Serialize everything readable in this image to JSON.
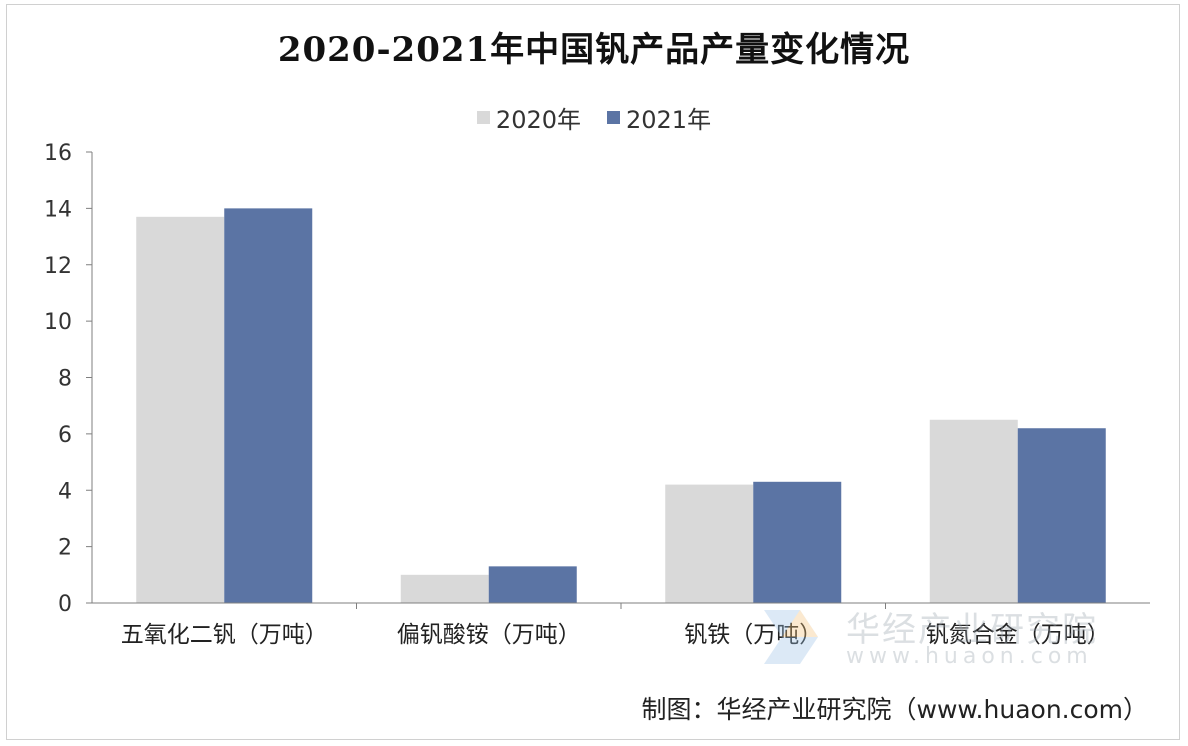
{
  "chart_data": {
    "type": "bar",
    "title": "2020-2021年中国钒产品产量变化情况",
    "categories": [
      "五氧化二钒（万吨）",
      "偏钒酸铵（万吨）",
      "钒铁（万吨）",
      "钒氮合金（万吨）"
    ],
    "series": [
      {
        "name": "2020年",
        "values": [
          13.7,
          1.0,
          4.2,
          6.5
        ],
        "color": "#d9d9d9"
      },
      {
        "name": "2021年",
        "values": [
          14.0,
          1.3,
          4.3,
          6.2
        ],
        "color": "#5b74a4"
      }
    ],
    "xlabel": "",
    "ylabel": "",
    "ylim": [
      0,
      16
    ],
    "yticks": [
      0,
      2,
      4,
      6,
      8,
      10,
      12,
      14,
      16
    ],
    "grid": false,
    "legend_position": "top-center"
  },
  "source": "制图：华经产业研究院（www.huaon.com）",
  "watermark": {
    "name": "华经产业研究院",
    "url": "www.huaon.com"
  }
}
